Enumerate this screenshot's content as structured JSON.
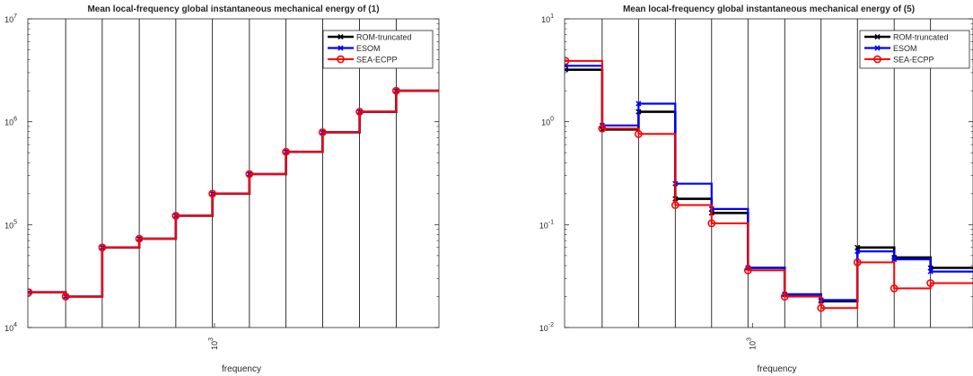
{
  "chart_data": [
    {
      "type": "line",
      "title": "Mean local-frequency global instantaneous mechanical energy of (1)",
      "xlabel": "frequency",
      "ylabel": "",
      "xscale": "log",
      "yscale": "log",
      "xtick_label": {
        "base": "10",
        "exp": "3"
      },
      "ytick_labels": [
        {
          "base": "10",
          "exp": "4"
        },
        {
          "base": "10",
          "exp": "5"
        },
        {
          "base": "10",
          "exp": "6"
        },
        {
          "base": "10",
          "exp": "7"
        }
      ],
      "ylim": [
        10000,
        10000000
      ],
      "grid": "vertical lines at band edges",
      "legend": "top-right",
      "series": [
        {
          "name": "ROM-truncated",
          "color": "#000000",
          "marker": "x",
          "values": [
            22000,
            20000,
            60000,
            73000,
            122000,
            200000,
            310000,
            510000,
            790000,
            1250000,
            2000000
          ]
        },
        {
          "name": "ESOM",
          "color": "#0000ff",
          "marker": "x",
          "values": [
            22000,
            20000,
            60000,
            73000,
            122000,
            200000,
            310000,
            510000,
            790000,
            1250000,
            2000000
          ]
        },
        {
          "name": "SEA-ECPP",
          "color": "#ff0000",
          "marker": "o",
          "values": [
            22000,
            20000,
            60000,
            73000,
            122000,
            200000,
            310000,
            510000,
            790000,
            1250000,
            2000000
          ]
        }
      ]
    },
    {
      "type": "line",
      "title": "Mean local-frequency global instantaneous mechanical energy of (5)",
      "xlabel": "frequency",
      "ylabel": "",
      "xscale": "log",
      "yscale": "log",
      "xtick_label": {
        "base": "10",
        "exp": "3"
      },
      "ytick_labels": [
        {
          "base": "10",
          "exp": "-2"
        },
        {
          "base": "10",
          "exp": "-1"
        },
        {
          "base": "10",
          "exp": "0"
        },
        {
          "base": "10",
          "exp": "1"
        }
      ],
      "ylim": [
        0.01,
        10
      ],
      "grid": "vertical lines at band edges",
      "legend": "top-right",
      "series": [
        {
          "name": "ROM-truncated",
          "color": "#000000",
          "marker": "x",
          "values": [
            3.2,
            0.84,
            1.25,
            0.178,
            0.13,
            0.038,
            0.021,
            0.018,
            0.06,
            0.048,
            0.038
          ]
        },
        {
          "name": "ESOM",
          "color": "#0000ff",
          "marker": "x",
          "values": [
            3.5,
            0.92,
            1.5,
            0.25,
            0.142,
            0.038,
            0.021,
            0.0185,
            0.055,
            0.046,
            0.035
          ]
        },
        {
          "name": "SEA-ECPP",
          "color": "#ff0000",
          "marker": "o",
          "values": [
            3.9,
            0.86,
            0.76,
            0.155,
            0.103,
            0.036,
            0.02,
            0.0155,
            0.043,
            0.024,
            0.027
          ]
        }
      ]
    }
  ]
}
